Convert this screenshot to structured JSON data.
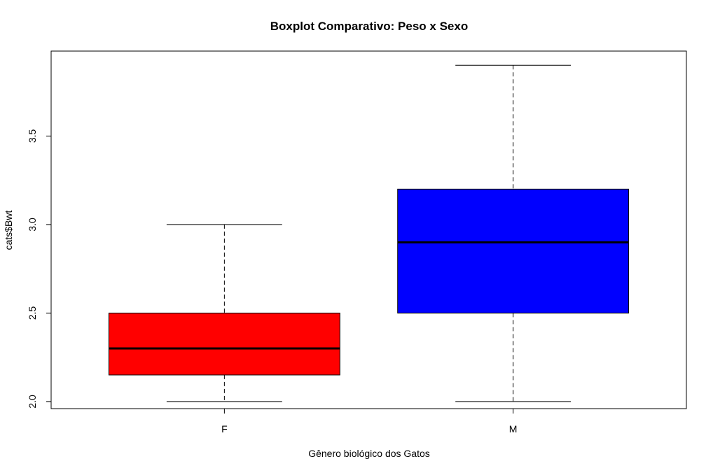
{
  "chart_data": {
    "type": "boxplot",
    "title": "Boxplot Comparativo: Peso x Sexo",
    "xlabel": "Gênero biológico dos Gatos",
    "ylabel": "cats$Bwt",
    "categories": [
      "F",
      "M"
    ],
    "boxes": [
      {
        "category": "F",
        "min": 2.0,
        "q1": 2.15,
        "median": 2.3,
        "q3": 2.5,
        "max": 3.0,
        "color": "#ff0000"
      },
      {
        "category": "M",
        "min": 2.0,
        "q1": 2.5,
        "median": 2.9,
        "q3": 3.2,
        "max": 3.9,
        "color": "#0000ff"
      }
    ],
    "ylim": [
      1.96,
      3.98
    ],
    "yticks": [
      2.0,
      2.5,
      3.0,
      3.5
    ],
    "ytick_labels": [
      "2.0",
      "2.5",
      "3.0",
      "3.5"
    ],
    "grid": false,
    "legend": "none"
  }
}
